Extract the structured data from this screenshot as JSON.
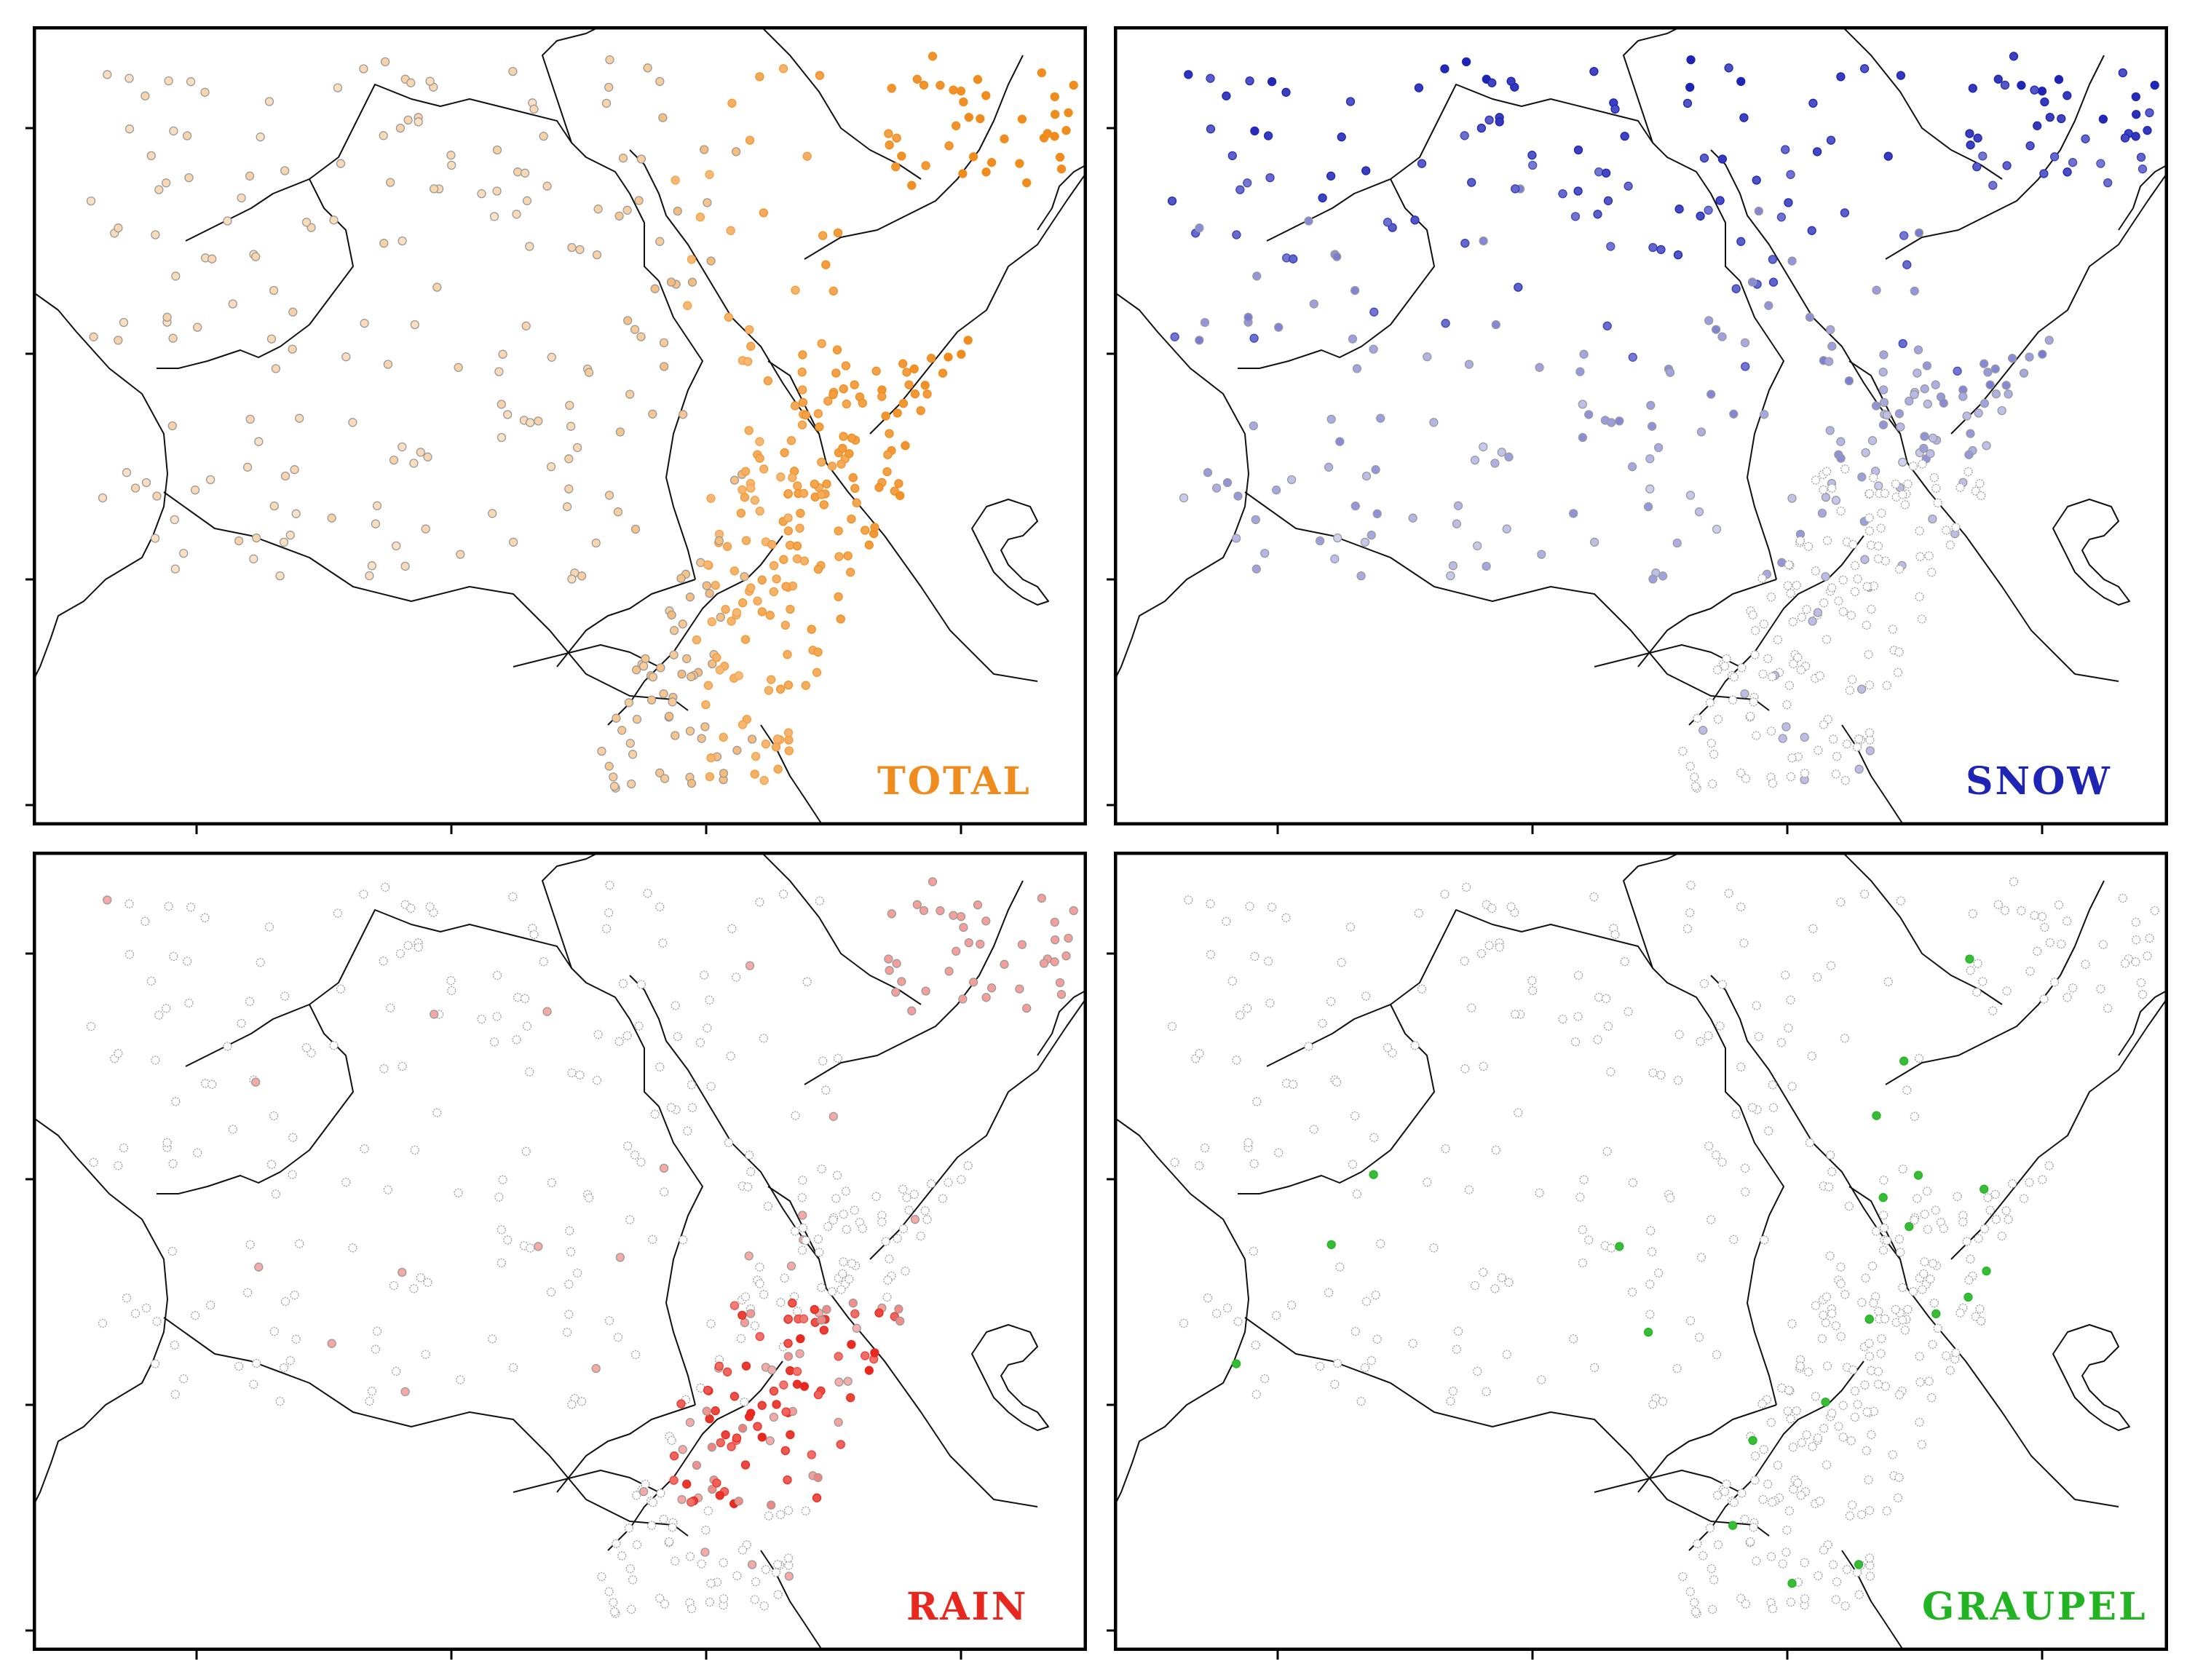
{
  "panels": [
    {
      "id": "total",
      "label": "TOTAL",
      "color": "#f08c1e",
      "station_tint": "#f2b460"
    },
    {
      "id": "snow",
      "label": "SNOW",
      "color": "#1e24b4",
      "station_tint": "#4a52d8"
    },
    {
      "id": "rain",
      "label": "RAIN",
      "color": "#e8281e",
      "station_tint": "#ec5a5a"
    },
    {
      "id": "graupel",
      "label": "GRAUPEL",
      "color": "#22b422",
      "station_tint": "#3cd23c"
    }
  ],
  "colors": {
    "frame": "#000000",
    "boundary": "#111111",
    "station_edge": "#9a9a9a"
  },
  "icons": [
    "station-marker-icon"
  ]
}
